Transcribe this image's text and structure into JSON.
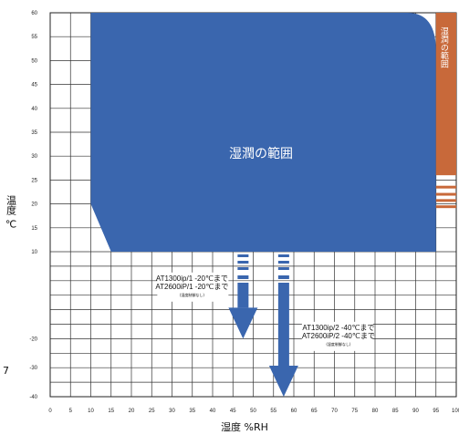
{
  "chart": {
    "x_axis": {
      "label": "湿度 %RH",
      "ticks": [
        "0",
        "5",
        "10",
        "15",
        "20",
        "25",
        "30",
        "35",
        "40",
        "45",
        "50",
        "55",
        "60",
        "65",
        "70",
        "75",
        "80",
        "85",
        "90",
        "95",
        "100"
      ]
    },
    "y_axis": {
      "label": "温度 ℃",
      "ticks": [
        {
          "v": 60,
          "label": "60"
        },
        {
          "v": 55,
          "label": "55"
        },
        {
          "v": 50,
          "label": "50"
        },
        {
          "v": 45,
          "label": "45"
        },
        {
          "v": 40,
          "label": "40"
        },
        {
          "v": 35,
          "label": "35"
        },
        {
          "v": 30,
          "label": "30"
        },
        {
          "v": 25,
          "label": "25"
        },
        {
          "v": 20,
          "label": "20"
        },
        {
          "v": 15,
          "label": "15"
        },
        {
          "v": 10,
          "label": "10"
        },
        {
          "v": -20,
          "label": "-20"
        },
        {
          "v": -30,
          "label": "-30"
        },
        {
          "v": -40,
          "label": "-40"
        }
      ]
    },
    "humid_region": {
      "label": "湿潤の範囲",
      "color": "#3a66ae",
      "polygon": [
        [
          10,
          20
        ],
        [
          10,
          60
        ],
        [
          90,
          60
        ],
        [
          95,
          55
        ],
        [
          95,
          10
        ],
        [
          15,
          10
        ]
      ]
    },
    "side_band": {
      "label": "湿潤の範囲",
      "color": "#c8693a",
      "humidity_range": [
        95,
        100
      ],
      "temperature_range": [
        15,
        60
      ],
      "stripe_temps": [
        23.8,
        22.3,
        21.0,
        19.7
      ]
    },
    "arrows": [
      {
        "humidity": 47.5,
        "to_temperature": -20,
        "color": "#3a66ae",
        "lines": [
          "AT1300ip/1 -20℃まで",
          "AT2600iP/1 -20℃まで"
        ],
        "note": "(湿度制御なし)"
      },
      {
        "humidity": 57.5,
        "to_temperature": -40,
        "color": "#3a66ae",
        "lines": [
          "AT1300ip/2 -40℃まで",
          "AT2600iP/2 -40℃まで"
        ],
        "note": "(湿度制御なし)"
      }
    ],
    "stray_mark": "7",
    "grid": true
  }
}
